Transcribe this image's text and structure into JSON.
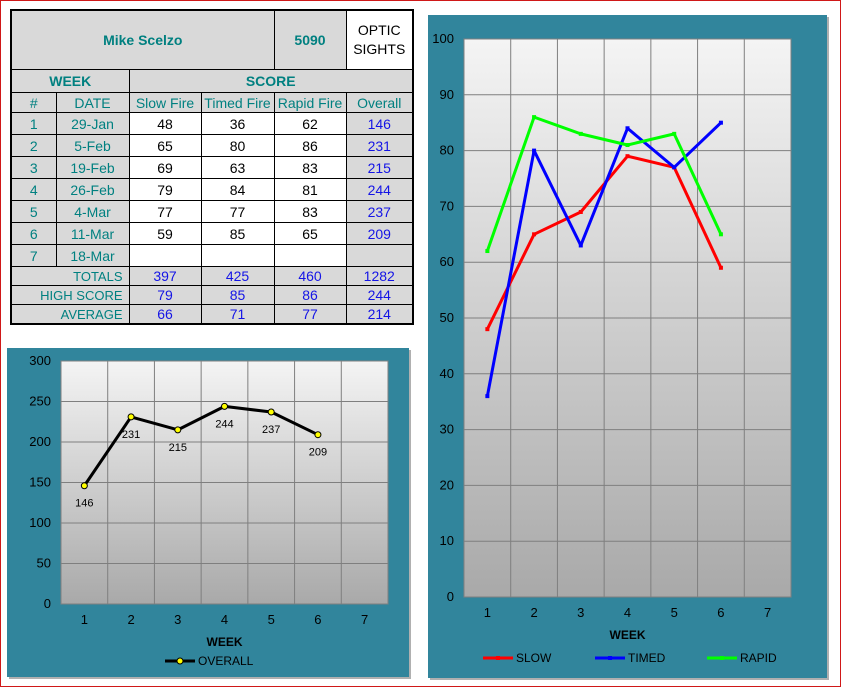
{
  "header": {
    "name": "Mike Scelzo",
    "id": "5090",
    "category_line1": "OPTIC",
    "category_line2": "SIGHTS"
  },
  "table": {
    "week_label": "WEEK",
    "score_label": "SCORE",
    "columns": [
      "#",
      "DATE",
      "Slow Fire",
      "Timed Fire",
      "Rapid Fire",
      "Overall"
    ],
    "rows": [
      {
        "num": "1",
        "date": "29-Jan",
        "slow": "48",
        "timed": "36",
        "rapid": "62",
        "overall": "146"
      },
      {
        "num": "2",
        "date": "5-Feb",
        "slow": "65",
        "timed": "80",
        "rapid": "86",
        "overall": "231"
      },
      {
        "num": "3",
        "date": "19-Feb",
        "slow": "69",
        "timed": "63",
        "rapid": "83",
        "overall": "215"
      },
      {
        "num": "4",
        "date": "26-Feb",
        "slow": "79",
        "timed": "84",
        "rapid": "81",
        "overall": "244"
      },
      {
        "num": "5",
        "date": "4-Mar",
        "slow": "77",
        "timed": "77",
        "rapid": "83",
        "overall": "237"
      },
      {
        "num": "6",
        "date": "11-Mar",
        "slow": "59",
        "timed": "85",
        "rapid": "65",
        "overall": "209"
      },
      {
        "num": "7",
        "date": "18-Mar",
        "slow": "",
        "timed": "",
        "rapid": "",
        "overall": ""
      }
    ],
    "totals": {
      "label": "TOTALS",
      "slow": "397",
      "timed": "425",
      "rapid": "460",
      "overall": "1282"
    },
    "high": {
      "label": "HIGH SCORE",
      "slow": "79",
      "timed": "85",
      "rapid": "86",
      "overall": "244"
    },
    "average": {
      "label": "AVERAGE",
      "slow": "66",
      "timed": "71",
      "rapid": "77",
      "overall": "214"
    }
  },
  "chart_data": [
    {
      "type": "line",
      "x": [
        1,
        2,
        3,
        4,
        5,
        6,
        7
      ],
      "xlabel": "WEEK",
      "ylabel": "",
      "ylim": [
        0,
        300
      ],
      "yticks": [
        0,
        50,
        100,
        150,
        200,
        250,
        300
      ],
      "grid": true,
      "legend": "bottom",
      "data_labels": true,
      "series": [
        {
          "name": "OVERALL",
          "color": "#000000",
          "marker_color": "#ffff00",
          "values": [
            146,
            231,
            215,
            244,
            237,
            209,
            null
          ]
        }
      ]
    },
    {
      "type": "line",
      "x": [
        1,
        2,
        3,
        4,
        5,
        6,
        7
      ],
      "xlabel": "WEEK",
      "ylabel": "",
      "ylim": [
        0,
        100
      ],
      "yticks": [
        0,
        10,
        20,
        30,
        40,
        50,
        60,
        70,
        80,
        90,
        100
      ],
      "grid": true,
      "legend": "bottom",
      "series": [
        {
          "name": "SLOW",
          "color": "#ff0000",
          "values": [
            48,
            65,
            69,
            79,
            77,
            59,
            null
          ]
        },
        {
          "name": "TIMED",
          "color": "#0000ff",
          "values": [
            36,
            80,
            63,
            84,
            77,
            85,
            null
          ]
        },
        {
          "name": "RAPID",
          "color": "#00ff00",
          "values": [
            62,
            86,
            83,
            81,
            83,
            65,
            null
          ]
        }
      ]
    }
  ]
}
